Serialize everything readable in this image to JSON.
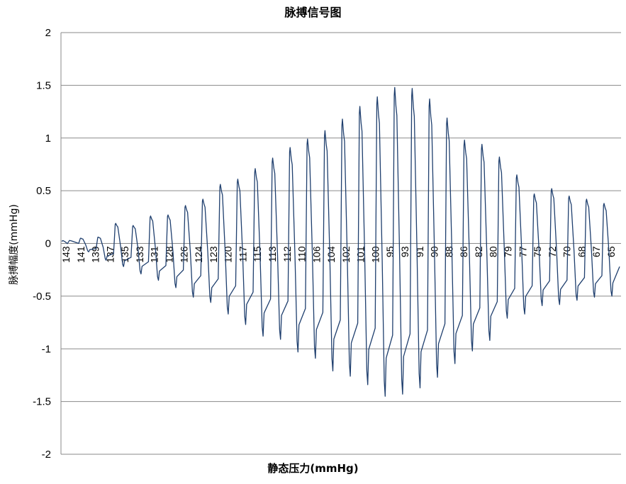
{
  "chart_data": {
    "type": "line",
    "title": "脉搏信号图",
    "xlabel": "静态压力(mmHg)",
    "ylabel": "脉搏幅度(mmHg)",
    "ylim": [
      -2,
      2
    ],
    "yticks": [
      "2",
      "1.5",
      "1",
      "0.5",
      "0",
      "-0.5",
      "-1",
      "-1.5",
      "-2"
    ],
    "grid": true,
    "line_color": "#1f3f6e",
    "x_tick_labels": [
      "143",
      "141",
      "139",
      "137",
      "135",
      "133",
      "131",
      "128",
      "126",
      "124",
      "123",
      "120",
      "117",
      "115",
      "113",
      "112",
      "110",
      "106",
      "104",
      "102",
      "101",
      "100",
      "95",
      "93",
      "91",
      "90",
      "88",
      "86",
      "82",
      "80",
      "79",
      "77",
      "75",
      "72",
      "70",
      "68",
      "67",
      "65"
    ],
    "series": [
      {
        "peaks": [
          0.05,
          0.06,
          0.19,
          0.17,
          0.26,
          0.27,
          0.36,
          0.42,
          0.56,
          0.61,
          0.71,
          0.81,
          0.91,
          0.99,
          1.07,
          1.18,
          1.3,
          1.39,
          1.48,
          1.47,
          1.37,
          1.19,
          0.98,
          0.94,
          0.82,
          0.65,
          0.47,
          0.52,
          0.45,
          0.42,
          0.38
        ],
        "troughs": [
          -0.08,
          -0.16,
          -0.22,
          -0.29,
          -0.35,
          -0.42,
          -0.51,
          -0.56,
          -0.67,
          -0.77,
          -0.88,
          -0.91,
          -1.03,
          -1.09,
          -1.21,
          -1.26,
          -1.34,
          -1.45,
          -1.43,
          -1.37,
          -1.27,
          -1.14,
          -1.02,
          -0.92,
          -0.71,
          -0.67,
          -0.59,
          -0.58,
          -0.54,
          -0.51,
          -0.5
        ]
      }
    ]
  }
}
